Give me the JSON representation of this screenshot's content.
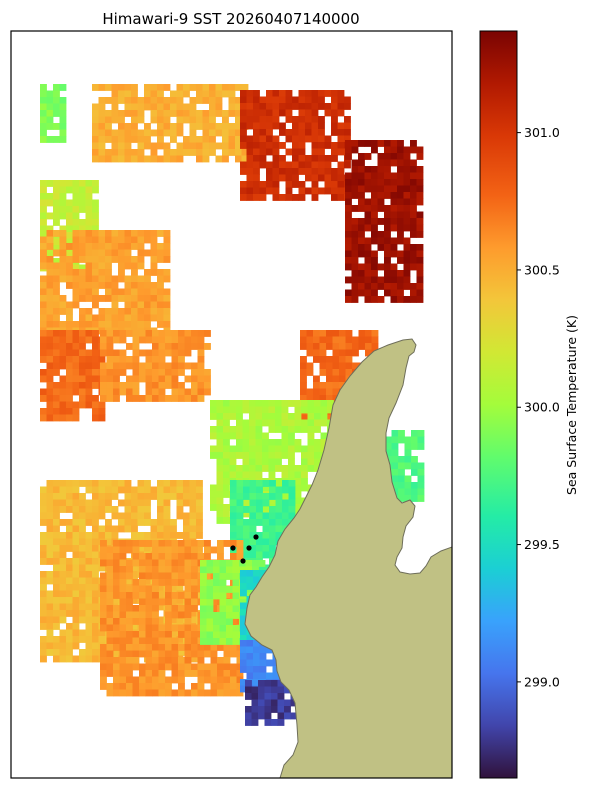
{
  "chart_data": {
    "type": "heatmap",
    "title": "Himawari-9 SST 20260407140000",
    "colorbar": {
      "label": "Sea Surface Temperature (K)",
      "ticks": [
        "299.0",
        "299.5",
        "300.0",
        "300.5",
        "301.0"
      ],
      "range": [
        298.65,
        301.37
      ],
      "colormap": "turbo"
    },
    "axes": {
      "xticks": "none",
      "yticks": "none",
      "grid": false
    },
    "land_color": "#c0c184",
    "coastline_color": "#6e6e5a",
    "markers": {
      "count": 4,
      "color": "#000000"
    },
    "sst_regions_K": [
      {
        "area": "far north-west strip",
        "value": 299.9
      },
      {
        "area": "northern band",
        "value": 300.5
      },
      {
        "area": "north-east block",
        "value": 301.05
      },
      {
        "area": "north-east corner",
        "value": 301.25
      },
      {
        "area": "western coast upper",
        "value": 300.15
      },
      {
        "area": "western coast middle",
        "value": 300.55
      },
      {
        "area": "west edge",
        "value": 300.75
      },
      {
        "area": "central patch",
        "value": 300.6
      },
      {
        "area": "east coastal strip",
        "value": 300.75
      },
      {
        "area": "central-east band",
        "value": 300.05
      },
      {
        "area": "near-coast mid",
        "value": 299.7
      },
      {
        "area": "south-west plain",
        "value": 300.45
      },
      {
        "area": "south core",
        "value": 300.6
      },
      {
        "area": "south near coast",
        "value": 299.95
      },
      {
        "area": "coastal south",
        "value": 299.45
      },
      {
        "area": "south-east pocket edge",
        "value": 299.1
      },
      {
        "area": "south-east pocket",
        "value": 298.8
      },
      {
        "area": "east inlet",
        "value": 299.75
      }
    ]
  }
}
